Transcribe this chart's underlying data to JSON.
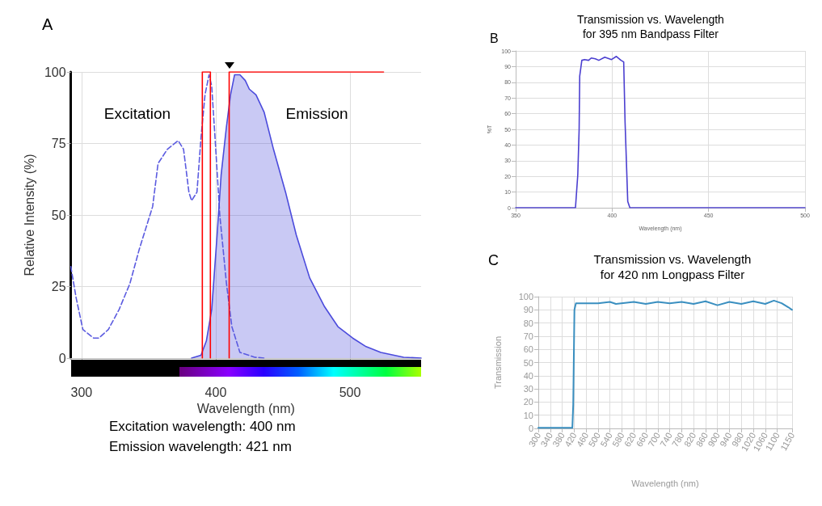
{
  "chart_data": [
    {
      "type": "line",
      "xlabel": "Wavelength (nm)",
      "ylabel": "Relative Intensity (%)",
      "xlim": [
        292,
        553
      ],
      "xticks": [
        300,
        400,
        500
      ],
      "ylim": [
        0,
        100
      ],
      "yticks": [
        0,
        25,
        50,
        75,
        100
      ],
      "grid": true,
      "marker": "none",
      "annotations": [
        "A",
        "Excitation",
        "Emission",
        "Excitation wavelength: 400 nm",
        "Emission wavelength: 421 nm"
      ],
      "series": [
        {
          "line_style": "dashed",
          "color": "#5b5be0",
          "x": [
            292,
            296,
            301,
            309,
            313,
            320,
            328,
            336,
            343,
            349,
            353,
            357,
            364,
            372,
            376,
            380,
            382,
            386,
            389,
            392,
            395,
            397,
            400,
            403,
            408,
            412,
            418,
            429,
            436
          ],
          "values": [
            32,
            21,
            10,
            7,
            7,
            10,
            17,
            26,
            38,
            47,
            53,
            68,
            73,
            76,
            73,
            58,
            55,
            58,
            77,
            92,
            99,
            95,
            73,
            50,
            26,
            11,
            2,
            0.3,
            0
          ]
        },
        {
          "type": "area",
          "line_style": "solid",
          "color": "#4b4bdc",
          "x": [
            382,
            389,
            393,
            397,
            401,
            404,
            408,
            411,
            414,
            418,
            422,
            425,
            430,
            436,
            443,
            452,
            460,
            470,
            481,
            491,
            502,
            512,
            523,
            540,
            553
          ],
          "values": [
            0,
            1,
            6,
            17,
            43,
            64,
            81,
            92,
            99,
            99,
            97,
            94,
            92,
            86,
            73,
            58,
            43,
            28,
            18,
            11,
            7,
            4,
            2,
            0.3,
            0
          ]
        },
        {
          "line_style": "solid",
          "color": "#ff0000",
          "x": [
            390,
            390,
            396,
            396
          ],
          "values": [
            0,
            100,
            100,
            0
          ]
        },
        {
          "line_style": "solid",
          "color": "#ff0000",
          "x": [
            410,
            410,
            525
          ],
          "values": [
            0,
            100,
            100
          ]
        }
      ]
    },
    {
      "type": "line",
      "title": "Transmission vs. Wavelength",
      "subtitle": "for 395 nm Bandpass Filter",
      "xlabel": "Wavelength (nm)",
      "ylabel": "%T",
      "xlim": [
        350,
        500
      ],
      "xticks": [
        350,
        400,
        450,
        500
      ],
      "ylim": [
        0,
        100
      ],
      "yticks": [
        0,
        10,
        20,
        30,
        40,
        50,
        60,
        70,
        80,
        90,
        100
      ],
      "grid": true,
      "marker": "none",
      "annotations": [
        "B"
      ],
      "series": [
        {
          "color": "#4b3fd0",
          "x": [
            350,
            381,
            382.2,
            382.9,
            383.2,
            384.3,
            385.7,
            387.8,
            389.2,
            391.3,
            393.1,
            396.2,
            399.7,
            402.2,
            404.6,
            406,
            406.7,
            408.1,
            409.2,
            500
          ],
          "values": [
            0,
            0,
            21,
            50,
            84,
            94,
            94.5,
            94,
            95.5,
            95,
            94,
            96,
            94.5,
            96.5,
            94,
            93,
            55,
            4,
            0,
            0
          ]
        }
      ]
    },
    {
      "type": "line",
      "title": "Transmission vs. Wavelength",
      "subtitle": "for 420 nm Longpass Filter",
      "xlabel": "Wavelength (nm)",
      "ylabel": "Transmission",
      "xlim": [
        300,
        1150
      ],
      "xticks": [
        300,
        340,
        380,
        420,
        460,
        500,
        540,
        580,
        620,
        660,
        700,
        740,
        780,
        820,
        860,
        900,
        940,
        980,
        1020,
        1060,
        1100,
        1150
      ],
      "ylim": [
        0,
        100
      ],
      "yticks": [
        0,
        10,
        20,
        30,
        40,
        50,
        60,
        70,
        80,
        90,
        100
      ],
      "grid": true,
      "marker": "none",
      "annotations": [
        "C"
      ],
      "series": [
        {
          "color": "#3a8fc0",
          "x": [
            300,
            414,
            417,
            421,
            426,
            460,
            500,
            540,
            560,
            620,
            660,
            700,
            740,
            780,
            820,
            860,
            900,
            940,
            980,
            1020,
            1060,
            1089,
            1115,
            1137,
            1150
          ],
          "values": [
            0.5,
            0.5,
            18,
            90,
            95,
            95,
            95,
            96,
            94.5,
            96,
            94.5,
            96,
            95,
            96,
            94.5,
            96.5,
            93.5,
            96,
            94.5,
            96.5,
            94.5,
            97,
            95,
            92,
            90
          ]
        }
      ]
    }
  ]
}
